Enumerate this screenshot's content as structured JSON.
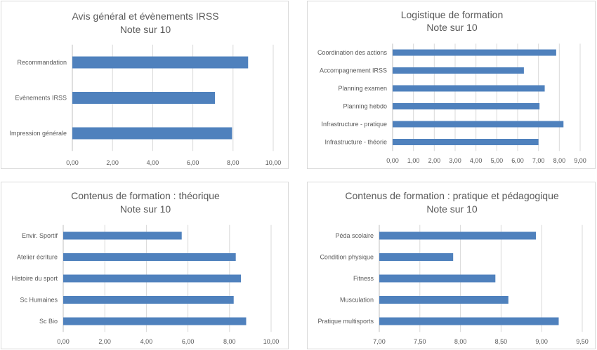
{
  "chart_data": [
    {
      "type": "bar",
      "orientation": "horizontal",
      "title": "Avis général et évènements IRSS",
      "subtitle": "Note sur 10",
      "categories": [
        "Recommandation",
        "Evènements IRSS",
        "Impression générale"
      ],
      "values": [
        8.75,
        7.1,
        7.95
      ],
      "xlim": [
        0,
        10
      ],
      "xticks": [
        "0,00",
        "2,00",
        "4,00",
        "6,00",
        "8,00",
        "10,00"
      ],
      "grid": true,
      "bar_color": "#4F81BD"
    },
    {
      "type": "bar",
      "orientation": "horizontal",
      "title": "Logistique de formation",
      "subtitle": "Note sur 10",
      "categories": [
        "Coordination des actions",
        "Accompagnement IRSS",
        "Planning examen",
        "Planning hebdo",
        "Infrastructure - pratique",
        "Infrastructure - théorie"
      ],
      "values": [
        7.85,
        6.3,
        7.3,
        7.05,
        8.2,
        7.0
      ],
      "xlim": [
        0,
        9
      ],
      "xticks": [
        "0,00",
        "1,00",
        "2,00",
        "3,00",
        "4,00",
        "5,00",
        "6,00",
        "7,00",
        "8,00",
        "9,00"
      ],
      "grid": true,
      "bar_color": "#4F81BD"
    },
    {
      "type": "bar",
      "orientation": "horizontal",
      "title": "Contenus de formation : théorique",
      "subtitle": "Note sur 10",
      "categories": [
        "Envir. Sportif",
        "Atelier écriture",
        "Histoire du sport",
        "Sc Humaines",
        "Sc Bio"
      ],
      "values": [
        5.7,
        8.3,
        8.55,
        8.2,
        8.8
      ],
      "xlim": [
        0,
        10
      ],
      "xticks": [
        "0,00",
        "2,00",
        "4,00",
        "6,00",
        "8,00",
        "10,00"
      ],
      "grid": true,
      "bar_color": "#4F81BD"
    },
    {
      "type": "bar",
      "orientation": "horizontal",
      "title": "Contenus de formation : pratique et pédagogique",
      "subtitle": "Note sur 10",
      "categories": [
        "Péda scolaire",
        "Condition physique",
        "Fitness",
        "Musculation",
        "Pratique multisports"
      ],
      "values": [
        8.93,
        7.91,
        8.43,
        8.59,
        9.21
      ],
      "xlim": [
        7,
        9.5
      ],
      "xticks": [
        "7,00",
        "7,50",
        "8,00",
        "8,50",
        "9,00",
        "9,50"
      ],
      "grid": true,
      "bar_color": "#4F81BD"
    }
  ]
}
